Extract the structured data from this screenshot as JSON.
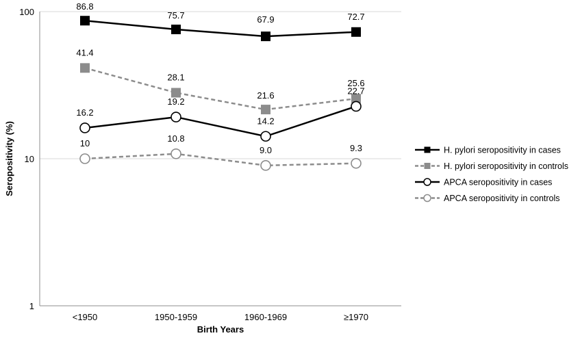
{
  "chart_data": {
    "type": "line",
    "title": "",
    "xlabel": "Birth Years",
    "ylabel": "Seropositivity (%)",
    "yscale": "log",
    "ylim": [
      1,
      100
    ],
    "yticks": [
      "1",
      "10",
      "100"
    ],
    "grid": "horizontal",
    "legend_position": "right",
    "categories": [
      "<1950",
      "1950-1959",
      "1960-1969",
      "≥1970"
    ],
    "series": [
      {
        "name": "H. pylori seropositivity in cases",
        "values": [
          86.8,
          75.7,
          67.9,
          72.7
        ],
        "labels": [
          "86.8",
          "75.7",
          "67.9",
          "72.7"
        ],
        "color": "#000000",
        "line": "solid",
        "marker": "square-filled"
      },
      {
        "name": "H. pylori seropositivity in controls",
        "values": [
          41.4,
          28.1,
          21.6,
          25.6
        ],
        "labels": [
          "41.4",
          "28.1",
          "21.6",
          "25.6"
        ],
        "color": "#8c8c8c",
        "line": "dashed",
        "marker": "square-filled"
      },
      {
        "name": "APCA seropositivity in cases",
        "values": [
          16.2,
          19.2,
          14.2,
          22.7
        ],
        "labels": [
          "16.2",
          "19.2",
          "14.2",
          "22.7"
        ],
        "color": "#000000",
        "line": "solid",
        "marker": "circle-open"
      },
      {
        "name": "APCA seropositivity in controls",
        "values": [
          10,
          10.8,
          9.0,
          9.3
        ],
        "labels": [
          "10",
          "10.8",
          "9.0",
          "9.3"
        ],
        "color": "#8c8c8c",
        "line": "dashed",
        "marker": "circle-open"
      }
    ]
  }
}
